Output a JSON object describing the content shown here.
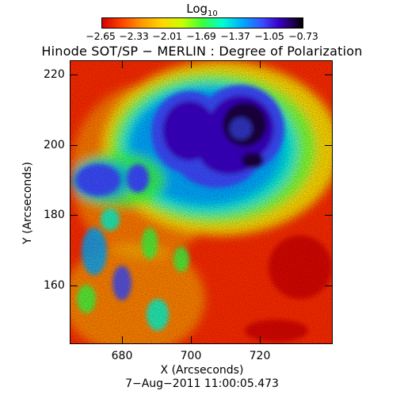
{
  "colorbar": {
    "label_base": "Log",
    "label_subscript": "10",
    "ticks": [
      "−2.65",
      "−2.33",
      "−2.01",
      "−1.69",
      "−1.37",
      "−1.05",
      "−0.73"
    ],
    "colors": [
      "#d40000",
      "#ff4500",
      "#ff9a00",
      "#ffd800",
      "#c8ff00",
      "#3cff3c",
      "#00ffd2",
      "#00aaff",
      "#3b4cff",
      "#3a00c8",
      "#1a0040",
      "#000000"
    ]
  },
  "title": "Hinode SOT/SP − MERLIN : Degree of Polarization",
  "x_axis": {
    "label": "X (Arcseconds)",
    "ticks": [
      "680",
      "700",
      "720"
    ],
    "range": [
      662,
      738
    ]
  },
  "y_axis": {
    "label": "Y (Arcseconds)",
    "ticks": [
      "160",
      "180",
      "200",
      "220"
    ],
    "range": [
      142,
      224
    ]
  },
  "timestamp": "7−Aug−2011 11:00:05.473"
}
